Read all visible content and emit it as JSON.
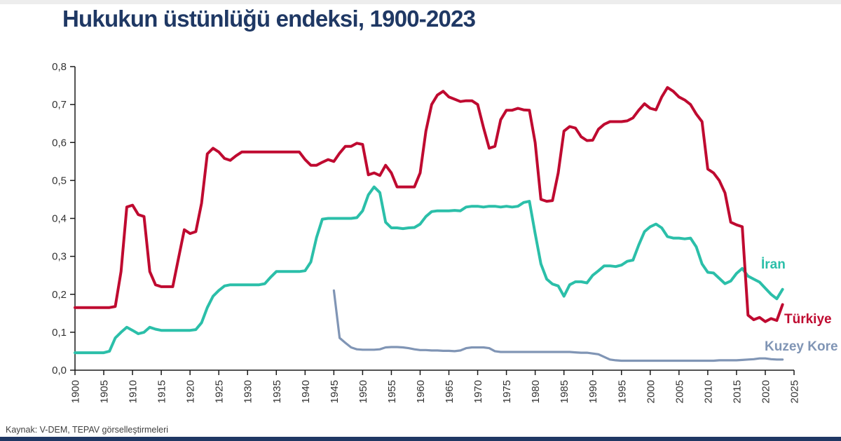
{
  "page": {
    "title": "Hukukun üstünlüğü endeksi, 1900-2023",
    "source_note": "Kaynak: V-DEM, TEPAV görselleştirmeleri",
    "title_color": "#1f3864",
    "accent_bar_color": "#1f3864"
  },
  "chart_data": {
    "type": "line",
    "title": "Hukukun üstünlüğü endeksi, 1900-2023",
    "xlabel": "",
    "ylabel": "",
    "xlim": [
      1900,
      2025
    ],
    "ylim": [
      0,
      0.8
    ],
    "x_ticks": [
      1900,
      1905,
      1910,
      1915,
      1920,
      1925,
      1930,
      1935,
      1940,
      1945,
      1950,
      1955,
      1960,
      1965,
      1970,
      1975,
      1980,
      1985,
      1990,
      1995,
      2000,
      2005,
      2010,
      2015,
      2020,
      2025
    ],
    "y_ticks": [
      0,
      0.1,
      0.2,
      0.3,
      0.4,
      0.5,
      0.6,
      0.7,
      0.8
    ],
    "y_tick_labels": [
      "0,0",
      "0,1",
      "0,2",
      "0,3",
      "0,4",
      "0,5",
      "0,6",
      "0,7",
      "0,8"
    ],
    "grid": false,
    "legend_position": "line-end-labels",
    "axis_color": "#1a1a1a",
    "tick_label_color": "#333333",
    "source": "Kaynak: V-DEM, TEPAV görselleştirmeleri",
    "series": [
      {
        "id": "kuzey-kore",
        "name": "Kuzey Kore",
        "color": "#8095b5",
        "line_width": 3.2,
        "start_year": 1945,
        "end_year": 2023,
        "values": [
          0.21,
          0.085,
          0.072,
          0.06,
          0.055,
          0.054,
          0.054,
          0.054,
          0.055,
          0.06,
          0.061,
          0.061,
          0.06,
          0.058,
          0.055,
          0.053,
          0.053,
          0.052,
          0.052,
          0.051,
          0.051,
          0.05,
          0.052,
          0.058,
          0.06,
          0.06,
          0.06,
          0.058,
          0.05,
          0.048,
          0.048,
          0.048,
          0.048,
          0.048,
          0.048,
          0.048,
          0.048,
          0.048,
          0.048,
          0.048,
          0.048,
          0.048,
          0.047,
          0.046,
          0.046,
          0.044,
          0.042,
          0.035,
          0.028,
          0.026,
          0.025,
          0.025,
          0.025,
          0.025,
          0.025,
          0.025,
          0.025,
          0.025,
          0.025,
          0.025,
          0.025,
          0.025,
          0.025,
          0.025,
          0.025,
          0.025,
          0.025,
          0.026,
          0.026,
          0.026,
          0.026,
          0.027,
          0.028,
          0.029,
          0.031,
          0.031,
          0.029,
          0.028,
          0.028
        ]
      },
      {
        "id": "iran",
        "name": "İran",
        "color": "#2bbfa9",
        "line_width": 4,
        "start_year": 1900,
        "end_year": 2023,
        "values": [
          0.046,
          0.046,
          0.046,
          0.046,
          0.046,
          0.046,
          0.05,
          0.085,
          0.1,
          0.113,
          0.105,
          0.096,
          0.1,
          0.113,
          0.108,
          0.105,
          0.105,
          0.105,
          0.105,
          0.105,
          0.105,
          0.107,
          0.125,
          0.165,
          0.195,
          0.21,
          0.222,
          0.225,
          0.225,
          0.225,
          0.225,
          0.225,
          0.225,
          0.228,
          0.245,
          0.26,
          0.26,
          0.26,
          0.26,
          0.26,
          0.262,
          0.285,
          0.35,
          0.398,
          0.4,
          0.4,
          0.4,
          0.4,
          0.4,
          0.402,
          0.42,
          0.462,
          0.483,
          0.468,
          0.39,
          0.375,
          0.375,
          0.373,
          0.375,
          0.376,
          0.385,
          0.405,
          0.418,
          0.42,
          0.42,
          0.42,
          0.421,
          0.42,
          0.43,
          0.432,
          0.432,
          0.43,
          0.432,
          0.432,
          0.43,
          0.432,
          0.43,
          0.432,
          0.442,
          0.445,
          0.36,
          0.28,
          0.24,
          0.227,
          0.222,
          0.195,
          0.225,
          0.233,
          0.233,
          0.23,
          0.25,
          0.262,
          0.275,
          0.275,
          0.273,
          0.277,
          0.287,
          0.29,
          0.33,
          0.365,
          0.378,
          0.385,
          0.375,
          0.352,
          0.348,
          0.348,
          0.346,
          0.348,
          0.325,
          0.28,
          0.258,
          0.256,
          0.242,
          0.228,
          0.235,
          0.255,
          0.268,
          0.248,
          0.24,
          0.232,
          0.216,
          0.2,
          0.188,
          0.213
        ]
      },
      {
        "id": "turkiye",
        "name": "Türkiye",
        "color": "#bf0a30",
        "line_width": 4,
        "start_year": 1900,
        "end_year": 2023,
        "values": [
          0.165,
          0.165,
          0.165,
          0.165,
          0.165,
          0.165,
          0.165,
          0.168,
          0.26,
          0.43,
          0.435,
          0.41,
          0.405,
          0.26,
          0.225,
          0.22,
          0.22,
          0.22,
          0.295,
          0.37,
          0.36,
          0.365,
          0.44,
          0.57,
          0.585,
          0.575,
          0.558,
          0.553,
          0.565,
          0.575,
          0.575,
          0.575,
          0.575,
          0.575,
          0.575,
          0.575,
          0.575,
          0.575,
          0.575,
          0.575,
          0.555,
          0.54,
          0.54,
          0.548,
          0.555,
          0.55,
          0.572,
          0.59,
          0.59,
          0.598,
          0.595,
          0.515,
          0.52,
          0.513,
          0.54,
          0.52,
          0.483,
          0.483,
          0.483,
          0.483,
          0.52,
          0.63,
          0.7,
          0.725,
          0.735,
          0.72,
          0.714,
          0.708,
          0.71,
          0.71,
          0.7,
          0.64,
          0.585,
          0.59,
          0.66,
          0.685,
          0.685,
          0.69,
          0.686,
          0.685,
          0.6,
          0.45,
          0.445,
          0.447,
          0.52,
          0.63,
          0.642,
          0.638,
          0.615,
          0.605,
          0.606,
          0.635,
          0.648,
          0.655,
          0.655,
          0.655,
          0.657,
          0.665,
          0.685,
          0.702,
          0.69,
          0.686,
          0.72,
          0.745,
          0.735,
          0.72,
          0.712,
          0.7,
          0.675,
          0.655,
          0.53,
          0.52,
          0.5,
          0.467,
          0.39,
          0.383,
          0.378,
          0.145,
          0.133,
          0.139,
          0.128,
          0.136,
          0.131,
          0.173
        ]
      }
    ]
  }
}
